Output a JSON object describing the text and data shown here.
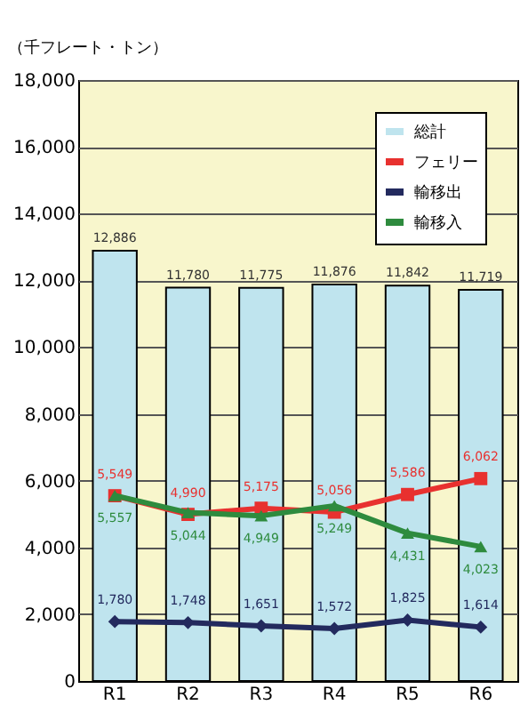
{
  "chart_data": {
    "type": "bar",
    "ylabel": "（千フレート・トン）",
    "categories": [
      "R1",
      "R2",
      "R3",
      "R4",
      "R5",
      "R6"
    ],
    "series": [
      {
        "name": "総計",
        "color": "#bfe4ee",
        "values": [
          12886,
          11780,
          11775,
          11876,
          11842,
          11719
        ],
        "value_labels": [
          "12,886",
          "11,780",
          "11,775",
          "11,876",
          "11,842",
          "11,719"
        ]
      },
      {
        "name": "フェリー",
        "type": "line",
        "color": "#e8312f",
        "marker": "square",
        "values": [
          5549,
          4990,
          5175,
          5056,
          5586,
          6062
        ],
        "value_labels": [
          "5,549",
          "4,990",
          "5,175",
          "5,056",
          "5,586",
          "6,062"
        ]
      },
      {
        "name": "輸移出",
        "type": "line",
        "color": "#232a5e",
        "marker": "diamond",
        "values": [
          1780,
          1748,
          1651,
          1572,
          1825,
          1614
        ],
        "value_labels": [
          "1,780",
          "1,748",
          "1,651",
          "1,572",
          "1,825",
          "1,614"
        ]
      },
      {
        "name": "輸移入",
        "type": "line",
        "color": "#2e8b3e",
        "marker": "triangle",
        "values": [
          5557,
          5044,
          4949,
          5249,
          4431,
          4023
        ],
        "value_labels": [
          "5,557",
          "5,044",
          "4,949",
          "5,249",
          "4,431",
          "4,023"
        ]
      }
    ],
    "ylim": [
      0,
      18000
    ],
    "yticks": [
      0,
      {
        "value": 2000,
        "label": "2,000"
      },
      {
        "value": 4000,
        "label": "4,000"
      },
      {
        "value": 6000,
        "label": "6,000"
      },
      {
        "value": 8000,
        "label": "8,000"
      },
      {
        "value": 10000,
        "label": "10,000"
      },
      {
        "value": 12000,
        "label": "12,000"
      },
      {
        "value": 14000,
        "label": "14,000"
      },
      {
        "value": 16000,
        "label": "16,000"
      },
      {
        "value": 18000,
        "label": "18,000"
      }
    ],
    "grid": "y",
    "legend": "top right"
  }
}
